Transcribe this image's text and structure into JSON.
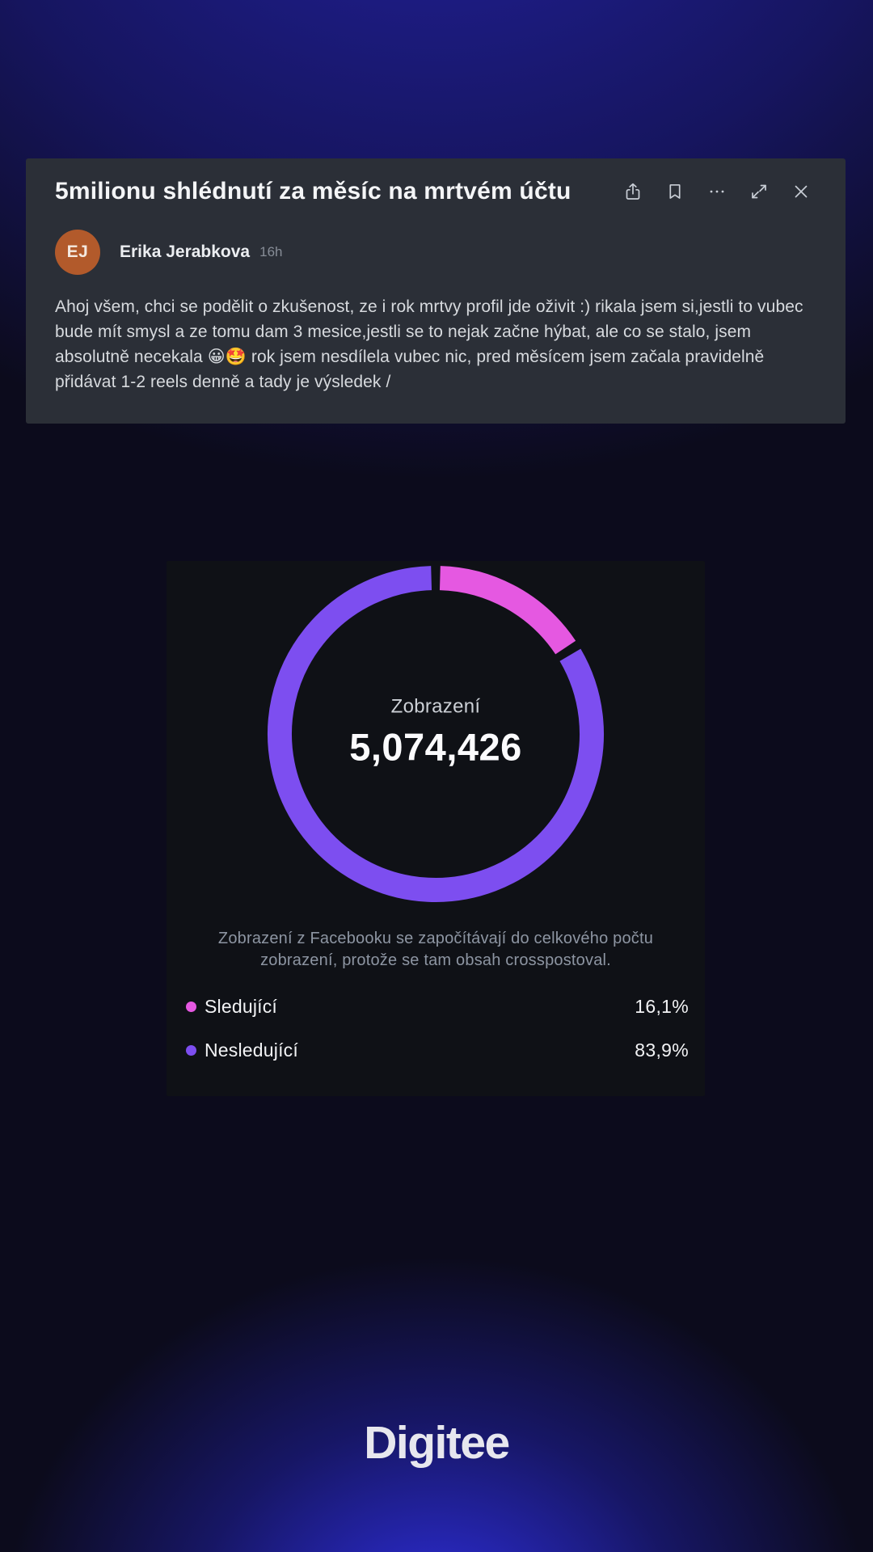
{
  "post_card": {
    "title": "5milionu shlédnutí za měsíc na mrtvém účtu",
    "toolbar_icons": [
      "share-icon",
      "bookmark-icon",
      "more-icon",
      "expand-icon",
      "close-icon"
    ],
    "author": {
      "initials": "EJ",
      "name": "Erika Jerabkova",
      "time": "16h",
      "avatar_color": "#b25a2b"
    },
    "body": "Ahoj všem, chci se podělit o zkušenost, ze i rok mrtvy profil jde oživit :) rikala jsem si,jestli to vubec bude mít smysl a ze tomu dam 3 mesice,jestli se to nejak začne hýbat, ale co se stalo, jsem absolutně necekala 😀🤩 rok jsem nesdílela vubec nic, pred měsícem jsem začala pravidelně přidávat 1-2 reels denně a tady je výsledek  /"
  },
  "chart_data": {
    "type": "pie",
    "donut": true,
    "center_label": "Zobrazení",
    "center_value": "5,074,426",
    "note": "Zobrazení z Facebooku se započítávají do celkového počtu zobrazení, protože se tam obsah crosspostoval.",
    "start_angle_deg": 0,
    "pad_angle_deg": 1.6,
    "legend_position": "bottom",
    "segments": [
      {
        "label": "Sledující",
        "value_pct": 16.1,
        "display": "16,1%",
        "color": "#e558e1"
      },
      {
        "label": "Nesledující",
        "value_pct": 83.9,
        "display": "83,9%",
        "color": "#7d4ef0"
      }
    ]
  },
  "brand": "Digitee",
  "colors": {
    "page_bg": "#0c0b1c",
    "top_glow": "#22219e",
    "bottom_glow": "#2f2fe2",
    "post_card_bg": "#2b2f37",
    "chart_card_bg": "#0f1116",
    "accent_pink": "#e558e1",
    "accent_purple": "#7d4ef0"
  }
}
